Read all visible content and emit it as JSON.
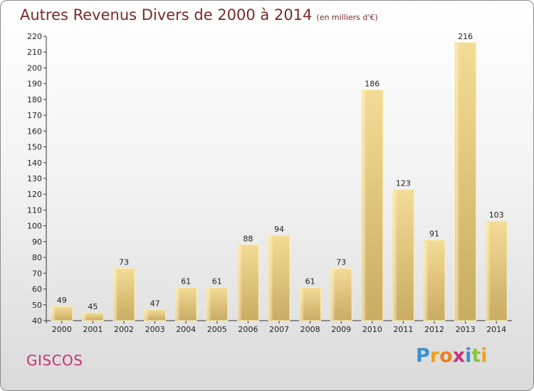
{
  "title": "Autres Revenus Divers de 2000 à 2014",
  "subtitle": "(en milliers d'€)",
  "commune": "GISCOS",
  "logo": {
    "letters": [
      "P",
      "r",
      "o",
      "x",
      "i",
      "t",
      "i"
    ],
    "colors": [
      "#3a8fd0",
      "#f0a020",
      "#ee7f1f",
      "#c8327a",
      "#3a8fd0",
      "#8cc43c",
      "#f0a020"
    ]
  },
  "chart_data": {
    "type": "bar",
    "categories": [
      "2000",
      "2001",
      "2002",
      "2003",
      "2004",
      "2005",
      "2006",
      "2007",
      "2008",
      "2009",
      "2010",
      "2011",
      "2012",
      "2013",
      "2014"
    ],
    "values": [
      49,
      45,
      73,
      47,
      61,
      61,
      88,
      94,
      61,
      73,
      186,
      123,
      91,
      216,
      103
    ],
    "ylim": [
      40,
      220
    ],
    "yticks": [
      40,
      50,
      60,
      70,
      80,
      90,
      100,
      110,
      120,
      130,
      140,
      150,
      160,
      170,
      180,
      190,
      200,
      210,
      220
    ],
    "grid": false,
    "bar_color": "#e8c977"
  }
}
